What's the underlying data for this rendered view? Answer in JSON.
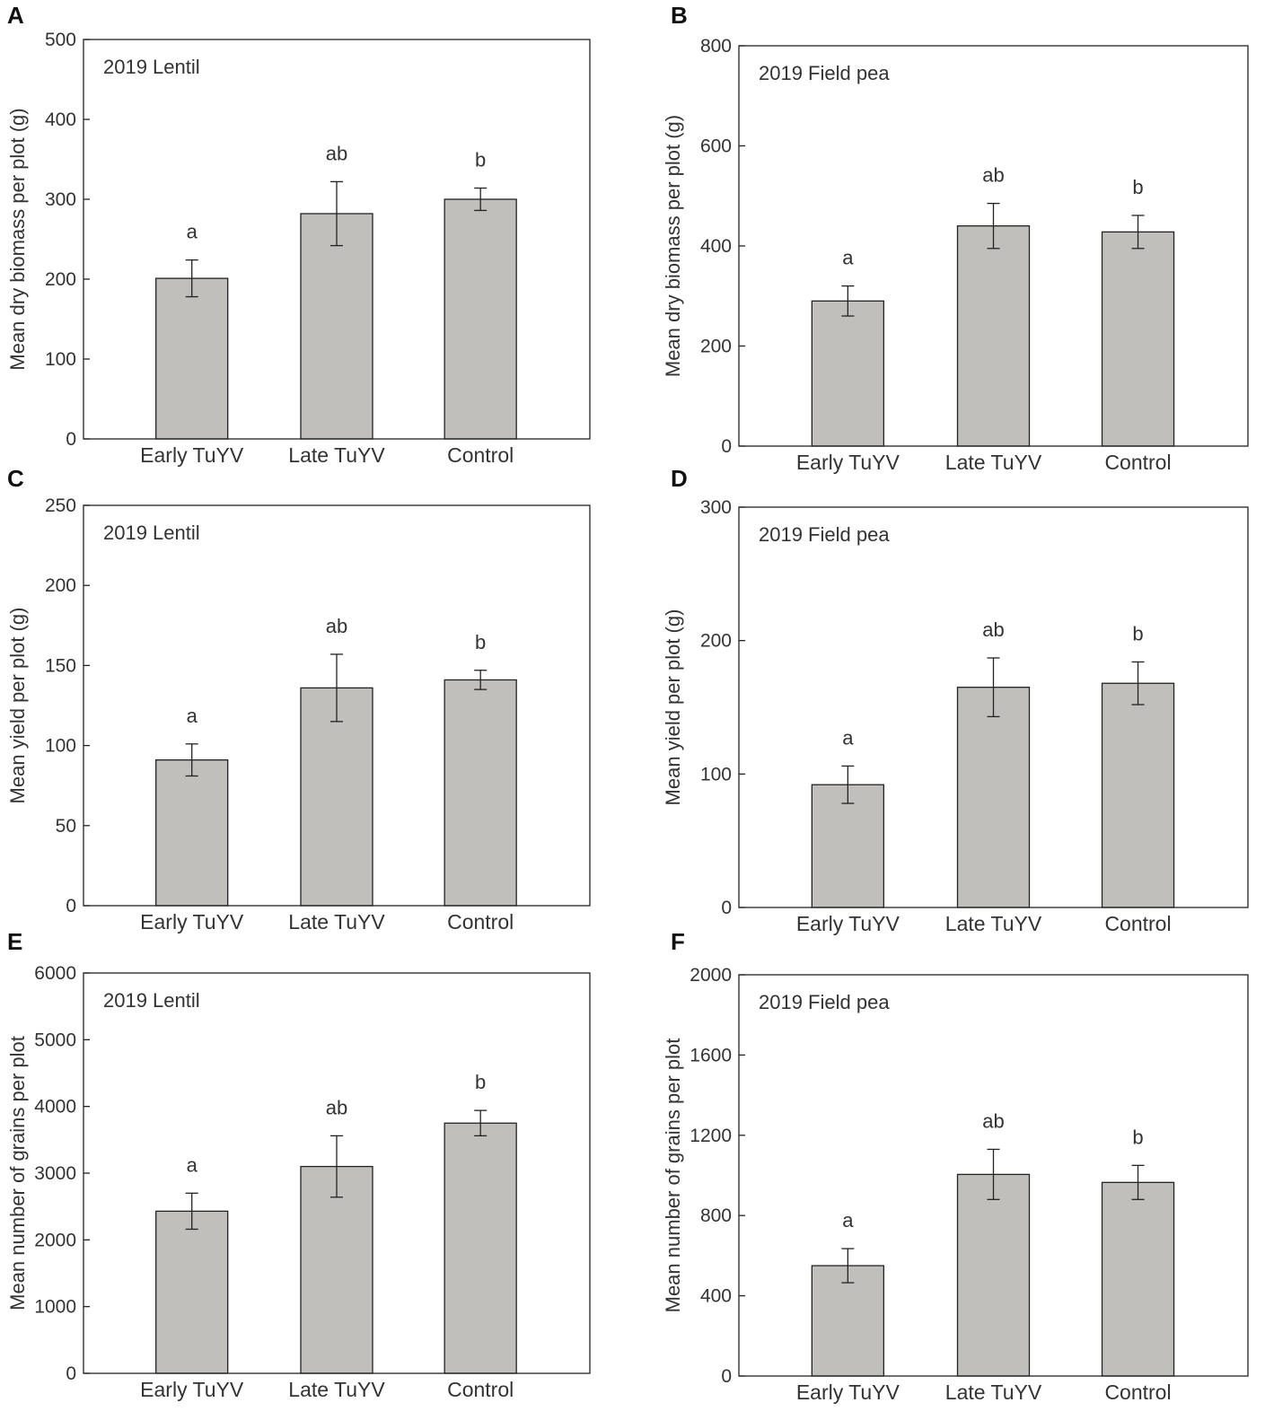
{
  "chart_data": [
    {
      "panel": "A",
      "type": "bar",
      "title": "2019 Lentil",
      "ylabel": "Mean dry biomass per plot (g)",
      "xlabel": "",
      "categories": [
        "Early TuYV",
        "Late TuYV",
        "Control"
      ],
      "values": [
        201,
        282,
        300
      ],
      "errors": [
        23,
        40,
        14
      ],
      "significance": [
        "a",
        "ab",
        "b"
      ],
      "ylim": [
        0,
        500
      ],
      "yticks": [
        "0",
        "100",
        "200",
        "300",
        "400",
        "500"
      ],
      "bar_color": "#c0bfbb"
    },
    {
      "panel": "B",
      "type": "bar",
      "title": "2019 Field pea",
      "ylabel": "Mean dry biomass per plot (g)",
      "xlabel": "",
      "categories": [
        "Early TuYV",
        "Late TuYV",
        "Control"
      ],
      "values": [
        290,
        440,
        428
      ],
      "errors": [
        30,
        45,
        33
      ],
      "significance": [
        "a",
        "ab",
        "b"
      ],
      "ylim": [
        0,
        800
      ],
      "yticks": [
        "0",
        "200",
        "400",
        "600",
        "800"
      ],
      "bar_color": "#c0bfbb"
    },
    {
      "panel": "C",
      "type": "bar",
      "title": "2019 Lentil",
      "ylabel": "Mean yield per plot (g)",
      "xlabel": "",
      "categories": [
        "Early TuYV",
        "Late TuYV",
        "Control"
      ],
      "values": [
        91,
        136,
        141
      ],
      "errors": [
        10,
        21,
        6
      ],
      "significance": [
        "a",
        "ab",
        "b"
      ],
      "ylim": [
        0,
        250
      ],
      "yticks": [
        "0",
        "50",
        "100",
        "150",
        "200",
        "250"
      ],
      "bar_color": "#c0bfbb"
    },
    {
      "panel": "D",
      "type": "bar",
      "title": "2019 Field pea",
      "ylabel": "Mean yield per plot (g)",
      "xlabel": "",
      "categories": [
        "Early TuYV",
        "Late TuYV",
        "Control"
      ],
      "values": [
        92,
        165,
        168
      ],
      "errors": [
        14,
        22,
        16
      ],
      "significance": [
        "a",
        "ab",
        "b"
      ],
      "ylim": [
        0,
        300
      ],
      "yticks": [
        "0",
        "100",
        "200",
        "300"
      ],
      "bar_color": "#c0bfbb"
    },
    {
      "panel": "E",
      "type": "bar",
      "title": "2019 Lentil",
      "ylabel": "Mean number of grains per plot",
      "xlabel": "",
      "categories": [
        "Early TuYV",
        "Late TuYV",
        "Control"
      ],
      "values": [
        2430,
        3100,
        3750
      ],
      "errors": [
        270,
        460,
        190
      ],
      "significance": [
        "a",
        "ab",
        "b"
      ],
      "ylim": [
        0,
        6000
      ],
      "yticks": [
        "0",
        "1000",
        "2000",
        "3000",
        "4000",
        "5000",
        "6000"
      ],
      "bar_color": "#c0bfbb"
    },
    {
      "panel": "F",
      "type": "bar",
      "title": "2019 Field pea",
      "ylabel": "Mean number of grains per plot",
      "xlabel": "",
      "categories": [
        "Early TuYV",
        "Late TuYV",
        "Control"
      ],
      "values": [
        550,
        1005,
        965
      ],
      "errors": [
        85,
        125,
        85
      ],
      "significance": [
        "a",
        "ab",
        "b"
      ],
      "ylim": [
        0,
        2000
      ],
      "yticks": [
        "0",
        "400",
        "800",
        "1200",
        "1600",
        "2000"
      ],
      "bar_color": "#c0bfbb"
    }
  ]
}
